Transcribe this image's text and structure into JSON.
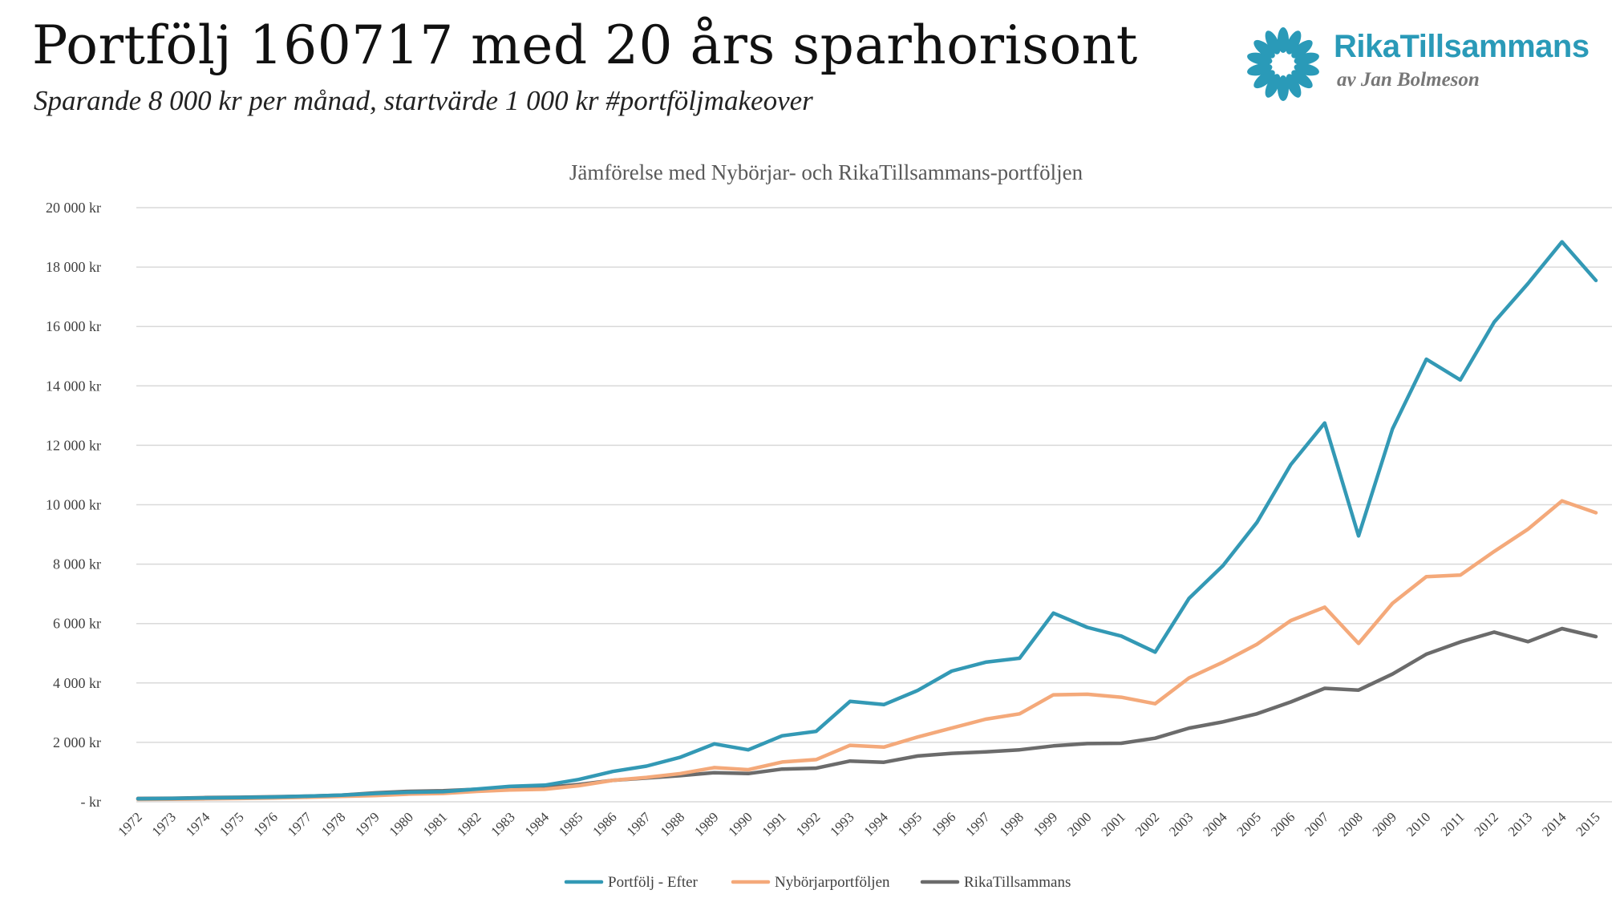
{
  "header": {
    "title": "Portfölj 160717 med 20 års sparhorisont",
    "subtitle": "Sparande 8 000 kr per månad, startvärde 1 000 kr #portföljmakeover"
  },
  "logo": {
    "name": "RikaTillsammans",
    "byline": "av Jan Bolmeson",
    "color": "#2a9ab8"
  },
  "chart_data": {
    "type": "line",
    "title": "Jämförelse med Nybörjar- och RikaTillsammans-portföljen",
    "xlabel": "",
    "ylabel": "",
    "ylim": [
      0,
      20000
    ],
    "y_ticks": [
      0,
      2000,
      4000,
      6000,
      8000,
      10000,
      12000,
      14000,
      16000,
      18000,
      20000
    ],
    "y_tick_labels": [
      "-  kr",
      "2 000 kr",
      "4 000 kr",
      "6 000 kr",
      "8 000 kr",
      "10 000 kr",
      "12 000 kr",
      "14 000 kr",
      "16 000 kr",
      "18 000 kr",
      "20 000 kr"
    ],
    "grid": true,
    "legend_position": "bottom",
    "categories": [
      "1972",
      "1973",
      "1974",
      "1975",
      "1976",
      "1977",
      "1978",
      "1979",
      "1980",
      "1981",
      "1982",
      "1983",
      "1984",
      "1985",
      "1986",
      "1987",
      "1988",
      "1989",
      "1990",
      "1991",
      "1992",
      "1993",
      "1994",
      "1995",
      "1996",
      "1997",
      "1998",
      "1999",
      "2000",
      "2001",
      "2002",
      "2003",
      "2004",
      "2005",
      "2006",
      "2007",
      "2008",
      "2009",
      "2010",
      "2011",
      "2012",
      "2013",
      "2014",
      "2015"
    ],
    "series": [
      {
        "name": "Portfölj - Efter",
        "color": "#3399b5",
        "values": [
          100,
          110,
          130,
          140,
          160,
          190,
          220,
          280,
          320,
          340,
          430,
          520,
          560,
          750,
          1020,
          1200,
          1500,
          1950,
          1750,
          2220,
          2370,
          3380,
          3270,
          3750,
          4400,
          4700,
          4830,
          6350,
          5870,
          5580,
          5040,
          6850,
          7950,
          9400,
          11350,
          12750,
          8950,
          12550,
          14900,
          14200,
          16150,
          17450,
          18850,
          17550
        ]
      },
      {
        "name": "Nybörjarportföljen",
        "color": "#f4a97a",
        "values": [
          80,
          90,
          100,
          110,
          130,
          150,
          180,
          210,
          260,
          280,
          350,
          400,
          420,
          540,
          720,
          820,
          950,
          1150,
          1080,
          1340,
          1420,
          1900,
          1840,
          2180,
          2480,
          2780,
          2960,
          3600,
          3620,
          3520,
          3300,
          4170,
          4700,
          5300,
          6100,
          6550,
          5330,
          6680,
          7580,
          7630,
          8430,
          9180,
          10130,
          9730
        ]
      },
      {
        "name": "RikaTillsammans",
        "color": "#6b6b6b",
        "values": [
          110,
          120,
          140,
          150,
          170,
          190,
          220,
          300,
          350,
          370,
          420,
          460,
          480,
          580,
          720,
          800,
          880,
          980,
          950,
          1100,
          1130,
          1370,
          1330,
          1540,
          1630,
          1680,
          1750,
          1880,
          1960,
          1970,
          2140,
          2480,
          2690,
          2960,
          3360,
          3820,
          3760,
          4300,
          4970,
          5380,
          5710,
          5390,
          5830,
          5560
        ]
      }
    ]
  }
}
